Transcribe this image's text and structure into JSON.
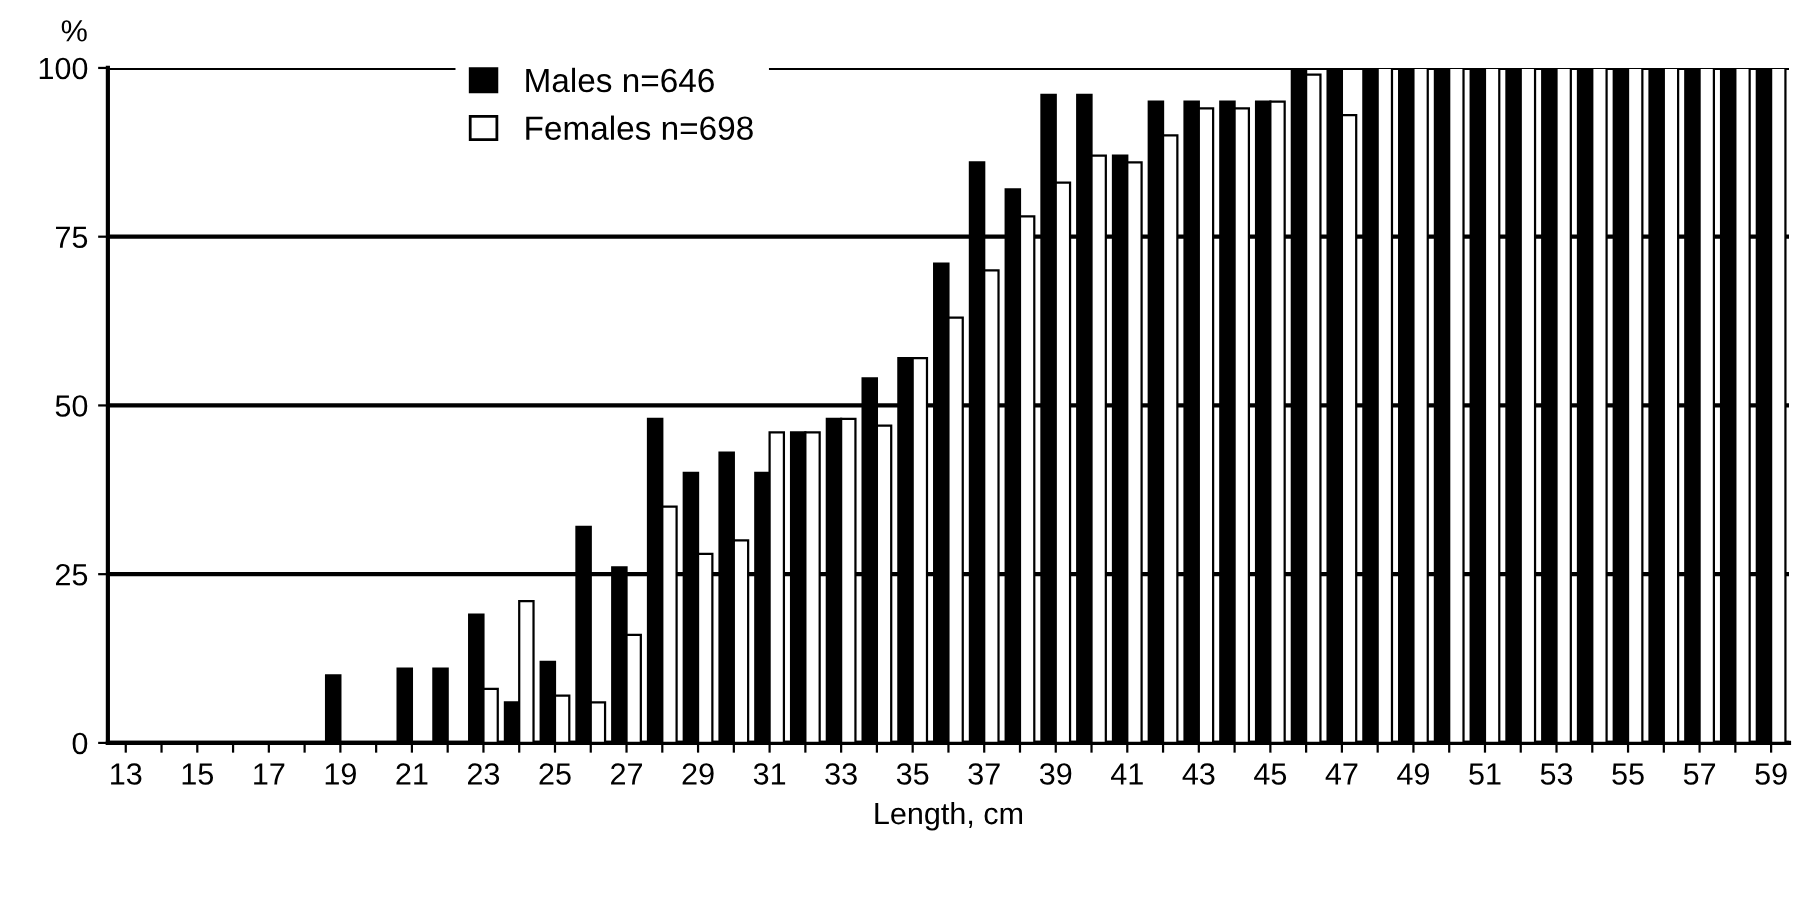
{
  "chart_data": {
    "type": "bar",
    "xlabel": "Length, cm",
    "ylabel": "%",
    "categories": [
      "13",
      null,
      "15",
      null,
      "17",
      null,
      "19",
      null,
      "21",
      null,
      "23",
      null,
      "25",
      null,
      "27",
      null,
      "29",
      null,
      "31",
      null,
      "33",
      null,
      "35",
      null,
      "37",
      null,
      "39",
      null,
      "41",
      null,
      "43",
      null,
      "45",
      null,
      "47",
      null,
      "49",
      null,
      "51",
      null,
      "53",
      null,
      "55",
      null,
      "57",
      null,
      "59"
    ],
    "series": [
      {
        "name": "Males n=646",
        "color": "#000000",
        "values": [
          0,
          0,
          0,
          0,
          0,
          0,
          10,
          0,
          11,
          11,
          19,
          6,
          12,
          32,
          26,
          48,
          40,
          43,
          40,
          46,
          48,
          54,
          57,
          71,
          86,
          82,
          96,
          96,
          87,
          95,
          95,
          95,
          95,
          100,
          100,
          100,
          100,
          100,
          100,
          100,
          100,
          100,
          100,
          100,
          100,
          100,
          100
        ]
      },
      {
        "name": "Females n=698",
        "color": "#ffffff",
        "values": [
          0,
          0,
          0,
          0,
          0,
          0,
          0,
          0,
          0,
          0,
          8,
          21,
          7,
          6,
          16,
          35,
          28,
          30,
          46,
          46,
          48,
          47,
          57,
          63,
          70,
          78,
          83,
          87,
          86,
          90,
          94,
          94,
          95,
          99,
          93,
          100,
          100,
          100,
          100,
          100,
          100,
          100,
          100,
          100,
          100,
          100,
          100
        ]
      }
    ],
    "ylim": [
      0,
      100
    ],
    "yticks": [
      0,
      25,
      50,
      75,
      100
    ],
    "grid": "y",
    "legend": "top"
  }
}
